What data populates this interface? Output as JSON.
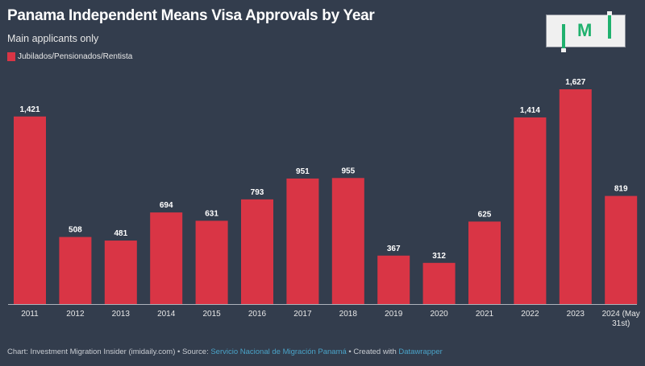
{
  "chart_data": {
    "type": "bar",
    "title": "Panama Independent Means Visa Approvals by Year",
    "subtitle": "Main applicants only",
    "legend": [
      {
        "name": "Jubilados/Pensionados/Rentista",
        "color": "#d93545"
      }
    ],
    "categories": [
      "2011",
      "2012",
      "2013",
      "2014",
      "2015",
      "2016",
      "2017",
      "2018",
      "2019",
      "2020",
      "2021",
      "2022",
      "2023",
      "2024 (May 31st)"
    ],
    "category_lines": [
      [
        "2011"
      ],
      [
        "2012"
      ],
      [
        "2013"
      ],
      [
        "2014"
      ],
      [
        "2015"
      ],
      [
        "2016"
      ],
      [
        "2017"
      ],
      [
        "2018"
      ],
      [
        "2019"
      ],
      [
        "2020"
      ],
      [
        "2021"
      ],
      [
        "2022"
      ],
      [
        "2023"
      ],
      [
        "2024 (May",
        "31st)"
      ]
    ],
    "values": [
      1421,
      508,
      481,
      694,
      631,
      793,
      951,
      955,
      367,
      312,
      625,
      1414,
      1627,
      819
    ],
    "value_labels": [
      "1,421",
      "508",
      "481",
      "694",
      "631",
      "793",
      "951",
      "955",
      "367",
      "312",
      "625",
      "1,414",
      "1,627",
      "819"
    ],
    "ylim": [
      0,
      1627
    ],
    "grid": false,
    "xlabel": "",
    "ylabel": ""
  },
  "logo": {
    "text": "M",
    "brand": "IMI"
  },
  "footer": {
    "prefix": "Chart: Investment Migration Insider (imidaily.com) • Source: ",
    "source": "Servicio Nacional de Migración Panamá",
    "middle": " • Created with ",
    "tool": "Datawrapper"
  },
  "colors": {
    "background": "#333d4d",
    "bar": "#d93545",
    "link": "#4aa3c8",
    "logo_green": "#20b16e"
  }
}
